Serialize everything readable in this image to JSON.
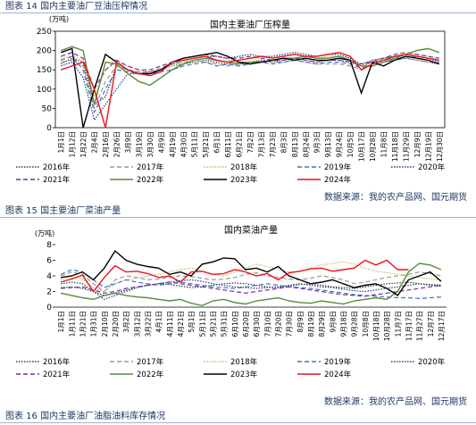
{
  "captions": {
    "figure14": "图表 14 国内主要油厂豆油压榨情况",
    "source1": "数据来源：我的农产品网、国元期货",
    "figure15": "图表 15 国主要油厂菜油产量",
    "source2": "数据来源：我的农产品网、国元期货",
    "figure16": "图表 16 国内主要油厂油脂油料库存情况"
  },
  "chart_data": [
    {
      "type": "line",
      "title": "国内主要油厂压榨量",
      "y_label": "(万吨)",
      "ylim": [
        0,
        250
      ],
      "yticks": [
        0,
        50,
        100,
        150,
        200,
        250
      ],
      "categories": [
        "1月1日",
        "1月12日",
        "1月22日",
        "2月4日",
        "2月16日",
        "2月26日",
        "3月9日",
        "3月19日",
        "3月30日",
        "4月9日",
        "4月19日",
        "4月30日",
        "5月11日",
        "5月21日",
        "6月1日",
        "6月11日",
        "6月21日",
        "7月2日",
        "7月13日",
        "7月23日",
        "8月3日",
        "8月13日",
        "8月24日",
        "9月3日",
        "9月13日",
        "9月24日",
        "10月5日",
        "10月17日",
        "10月28日",
        "11月8日",
        "11月18日",
        "11月29日",
        "12月9日",
        "12月19日",
        "12月30日"
      ],
      "series": [
        {
          "name": "2016年",
          "color": "#333333",
          "style": "dotted",
          "values": [
            165,
            180,
            170,
            60,
            80,
            160,
            150,
            140,
            140,
            150,
            160,
            165,
            170,
            175,
            170,
            165,
            170,
            170,
            175,
            170,
            175,
            180,
            175,
            170,
            175,
            175,
            170,
            160,
            170,
            175,
            180,
            180,
            175,
            170,
            165
          ]
        },
        {
          "name": "2017年",
          "color": "#9a9a9a",
          "style": "dashed",
          "values": [
            170,
            175,
            160,
            50,
            120,
            160,
            150,
            145,
            145,
            155,
            165,
            170,
            175,
            170,
            165,
            160,
            165,
            165,
            170,
            170,
            170,
            175,
            170,
            165,
            165,
            165,
            160,
            150,
            165,
            170,
            175,
            180,
            175,
            170,
            170
          ]
        },
        {
          "name": "2018年",
          "color": "#c9b866",
          "style": "dotted",
          "values": [
            180,
            185,
            175,
            80,
            150,
            170,
            160,
            150,
            145,
            150,
            160,
            170,
            175,
            180,
            185,
            175,
            175,
            180,
            180,
            185,
            185,
            190,
            185,
            180,
            185,
            185,
            180,
            160,
            175,
            180,
            185,
            190,
            190,
            185,
            180
          ]
        },
        {
          "name": "2019年",
          "color": "#4472c4",
          "style": "dashed",
          "values": [
            175,
            185,
            150,
            40,
            100,
            150,
            145,
            140,
            140,
            145,
            150,
            160,
            165,
            170,
            160,
            165,
            160,
            165,
            170,
            165,
            170,
            175,
            170,
            165,
            170,
            170,
            165,
            155,
            160,
            170,
            175,
            180,
            185,
            180,
            175
          ]
        },
        {
          "name": "2020年",
          "color": "#1f3d7a",
          "style": "dotted",
          "values": [
            160,
            170,
            130,
            20,
            60,
            100,
            140,
            140,
            145,
            150,
            165,
            175,
            180,
            185,
            185,
            180,
            185,
            190,
            185,
            185,
            190,
            195,
            190,
            185,
            190,
            190,
            180,
            165,
            175,
            180,
            185,
            190,
            185,
            180,
            170
          ]
        },
        {
          "name": "2021年",
          "color": "#7030a0",
          "style": "dashed",
          "values": [
            185,
            195,
            180,
            100,
            150,
            175,
            160,
            150,
            150,
            160,
            170,
            180,
            185,
            190,
            185,
            180,
            180,
            185,
            180,
            175,
            175,
            180,
            175,
            170,
            175,
            175,
            170,
            165,
            170,
            180,
            190,
            195,
            190,
            185,
            180
          ]
        },
        {
          "name": "2022年",
          "color": "#5a8a3a",
          "style": "solid",
          "values": [
            200,
            210,
            200,
            60,
            170,
            165,
            140,
            120,
            110,
            130,
            150,
            165,
            175,
            180,
            175,
            170,
            165,
            170,
            170,
            175,
            180,
            180,
            185,
            180,
            180,
            185,
            175,
            160,
            160,
            170,
            180,
            190,
            200,
            205,
            195
          ]
        },
        {
          "name": "2023年",
          "color": "#000000",
          "style": "solid",
          "values": [
            195,
            205,
            0,
            100,
            190,
            170,
            150,
            140,
            140,
            150,
            170,
            180,
            185,
            190,
            195,
            185,
            170,
            165,
            170,
            175,
            180,
            175,
            180,
            175,
            175,
            180,
            175,
            90,
            170,
            160,
            175,
            185,
            180,
            175,
            165
          ]
        },
        {
          "name": "2024年",
          "color": "#e8141b",
          "style": "solid",
          "values": [
            150,
            160,
            170,
            100,
            0,
            170,
            150,
            140,
            135,
            145,
            170,
            175,
            180,
            185,
            175,
            170,
            175,
            180,
            185,
            180,
            185,
            190,
            185,
            185,
            190,
            195,
            185,
            150,
            165,
            175,
            185,
            190,
            185,
            180,
            175
          ]
        }
      ]
    },
    {
      "type": "line",
      "title": "国内菜油产量",
      "y_label": "(万吨)",
      "ylim": [
        0,
        8
      ],
      "yticks": [
        0,
        2,
        4,
        6,
        8
      ],
      "categories": [
        "1月1日",
        "1月11日",
        "1月21日",
        "1月31日",
        "2月10日",
        "2月20日",
        "3月2日",
        "3月12日",
        "3月22日",
        "4月1日",
        "4月11日",
        "4月21日",
        "5月1日",
        "5月11日",
        "5月21日",
        "5月31日",
        "6月10日",
        "6月20日",
        "6月30日",
        "7月10日",
        "7月20日",
        "7月30日",
        "8月9日",
        "8月19日",
        "8月29日",
        "9月8日",
        "9月18日",
        "9月28日",
        "10月8日",
        "10月18日",
        "10月28日",
        "11月7日",
        "11月17日",
        "11月27日",
        "12月7日",
        "12月17日"
      ],
      "series": [
        {
          "name": "2016年",
          "color": "#333333",
          "style": "dotted",
          "values": [
            2.5,
            2.6,
            2.4,
            2.0,
            1.5,
            1.8,
            2.2,
            2.5,
            2.8,
            3.0,
            2.9,
            2.7,
            2.5,
            2.6,
            2.8,
            3.0,
            3.1,
            3.0,
            2.8,
            2.6,
            2.5,
            2.7,
            2.9,
            3.0,
            2.8,
            2.6,
            2.5,
            2.4,
            2.6,
            2.8,
            3.0,
            3.1,
            3.2,
            3.0,
            2.8,
            2.7
          ]
        },
        {
          "name": "2017年",
          "color": "#9a9a9a",
          "style": "dashed",
          "values": [
            4.0,
            4.5,
            4.2,
            3.0,
            2.0,
            3.5,
            4.0,
            3.8,
            3.5,
            3.6,
            3.8,
            4.0,
            3.9,
            3.7,
            3.5,
            3.6,
            3.8,
            4.2,
            4.4,
            4.0,
            3.8,
            3.6,
            3.5,
            3.7,
            4.0,
            3.8,
            3.5,
            3.0,
            3.2,
            3.5,
            3.8,
            4.0,
            4.2,
            4.5,
            4.3,
            4.0
          ]
        },
        {
          "name": "2018年",
          "color": "#c9b866",
          "style": "dotted",
          "values": [
            3.5,
            3.8,
            3.6,
            2.5,
            2.0,
            3.0,
            3.5,
            3.7,
            4.0,
            4.2,
            4.5,
            4.8,
            5.0,
            4.6,
            4.2,
            4.0,
            4.5,
            5.0,
            5.5,
            5.2,
            4.8,
            4.5,
            4.6,
            5.0,
            5.4,
            5.6,
            5.8,
            5.5,
            5.0,
            4.6,
            4.4,
            4.2,
            4.0,
            3.8,
            3.6,
            3.5
          ]
        },
        {
          "name": "2019年",
          "color": "#4472c4",
          "style": "dashed",
          "values": [
            4.2,
            4.8,
            4.5,
            3.5,
            2.5,
            3.0,
            3.5,
            3.2,
            3.0,
            2.8,
            3.0,
            3.2,
            3.0,
            2.8,
            2.6,
            2.5,
            2.4,
            2.6,
            2.8,
            3.0,
            2.8,
            2.6,
            2.5,
            2.4,
            2.2,
            2.0,
            1.8,
            1.6,
            1.5,
            1.4,
            1.3,
            1.2,
            1.2,
            1.1,
            1.2,
            1.3
          ]
        },
        {
          "name": "2020年",
          "color": "#1f3d7a",
          "style": "dotted",
          "values": [
            3.0,
            3.2,
            3.0,
            2.0,
            1.0,
            1.5,
            2.0,
            2.5,
            2.8,
            3.0,
            3.2,
            3.4,
            3.5,
            3.3,
            3.0,
            2.8,
            2.6,
            2.5,
            2.4,
            2.5,
            2.6,
            2.8,
            3.0,
            2.8,
            2.6,
            2.5,
            2.3,
            2.1,
            2.0,
            2.2,
            2.4,
            2.6,
            2.8,
            3.0,
            2.9,
            2.8
          ]
        },
        {
          "name": "2021年",
          "color": "#7030a0",
          "style": "dashed",
          "values": [
            2.4,
            2.5,
            2.6,
            2.2,
            1.8,
            2.0,
            2.4,
            2.6,
            2.8,
            3.0,
            3.2,
            3.0,
            2.8,
            2.6,
            2.4,
            2.2,
            2.0,
            1.8,
            2.0,
            2.2,
            2.4,
            2.6,
            2.4,
            2.2,
            2.0,
            1.8,
            1.6,
            1.5,
            1.4,
            1.6,
            1.8,
            2.0,
            2.2,
            2.4,
            2.6,
            2.8
          ]
        },
        {
          "name": "2022年",
          "color": "#5a8a3a",
          "style": "solid",
          "values": [
            1.8,
            1.5,
            1.2,
            1.0,
            1.5,
            1.8,
            1.5,
            1.3,
            1.2,
            1.0,
            0.8,
            1.0,
            0.5,
            0.2,
            0.8,
            1.0,
            0.6,
            0.4,
            0.8,
            1.0,
            1.2,
            0.8,
            0.6,
            0.5,
            0.8,
            0.6,
            0.4,
            0.8,
            1.0,
            1.2,
            1.0,
            2.0,
            4.5,
            5.6,
            5.4,
            4.8
          ]
        },
        {
          "name": "2023年",
          "color": "#000000",
          "style": "solid",
          "values": [
            3.8,
            4.0,
            4.5,
            3.5,
            5.0,
            7.2,
            6.0,
            5.5,
            5.2,
            5.0,
            4.2,
            4.5,
            4.0,
            5.5,
            5.8,
            6.3,
            6.2,
            4.8,
            5.0,
            4.5,
            5.2,
            4.0,
            3.5,
            3.0,
            3.2,
            3.5,
            3.0,
            2.5,
            2.8,
            3.0,
            2.4,
            1.5,
            3.5,
            4.0,
            4.5,
            3.3
          ]
        },
        {
          "name": "2024年",
          "color": "#e8141b",
          "style": "solid",
          "values": [
            3.2,
            3.6,
            4.1,
            2.0,
            3.8,
            5.3,
            4.5,
            4.6,
            4.3,
            3.8,
            4.0,
            3.2,
            4.5,
            4.6,
            4.2,
            4.3,
            4.8,
            4.5,
            4.0,
            4.3,
            3.5,
            4.4,
            4.6,
            4.9,
            5.0,
            4.6,
            4.8,
            5.0,
            6.0,
            5.4,
            6.0,
            4.8,
            4.8,
            null,
            null,
            null
          ]
        }
      ]
    }
  ]
}
